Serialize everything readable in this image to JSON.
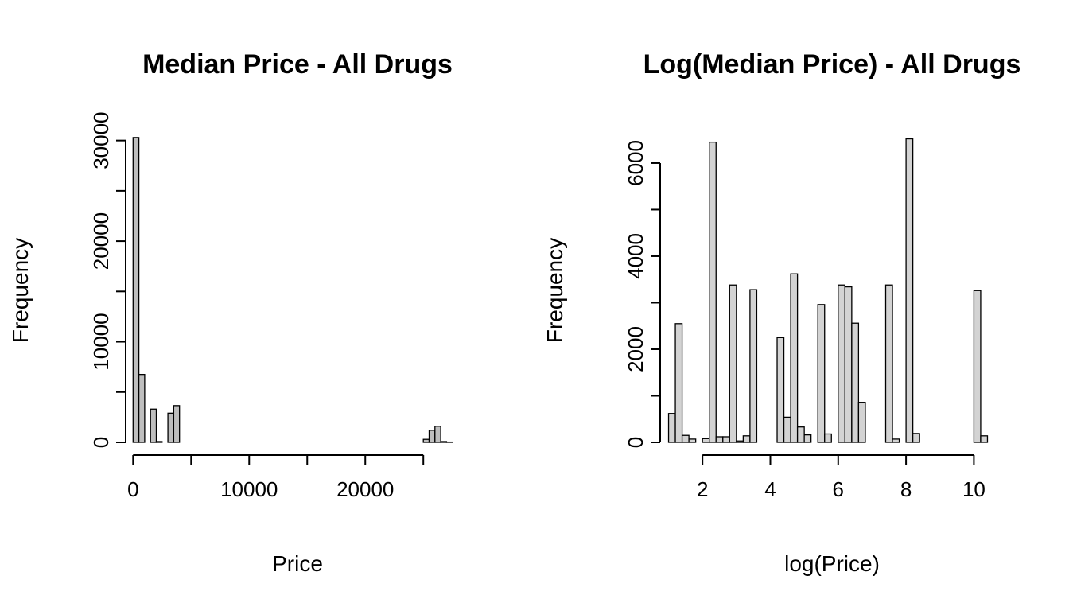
{
  "chart_data": [
    {
      "type": "bar",
      "title": "Median Price - All Drugs",
      "xlabel": "Price",
      "ylabel": "Frequency",
      "xlim": [
        -500,
        28000
      ],
      "ylim": [
        0,
        31000
      ],
      "xticks": [
        0,
        10000,
        20000
      ],
      "xtick_labels": [
        "0",
        "10000",
        "20000"
      ],
      "yticks": [
        0,
        5000,
        10000,
        15000,
        20000,
        25000,
        30000
      ],
      "ytick_labels": [
        "0",
        "",
        "10000",
        "",
        "20000",
        "",
        "30000"
      ],
      "bar_color": "#bebebe",
      "bins": [
        {
          "x0": 0,
          "x1": 500,
          "value": 30300
        },
        {
          "x0": 500,
          "x1": 1000,
          "value": 6750
        },
        {
          "x0": 1000,
          "x1": 1500,
          "value": 0
        },
        {
          "x0": 1500,
          "x1": 2000,
          "value": 3300
        },
        {
          "x0": 2000,
          "x1": 2500,
          "value": 80
        },
        {
          "x0": 2500,
          "x1": 3000,
          "value": 0
        },
        {
          "x0": 3000,
          "x1": 3500,
          "value": 2900
        },
        {
          "x0": 3500,
          "x1": 4000,
          "value": 3650
        },
        {
          "x0": 25000,
          "x1": 25500,
          "value": 300
        },
        {
          "x0": 25500,
          "x1": 26000,
          "value": 1200
        },
        {
          "x0": 26000,
          "x1": 26500,
          "value": 1600
        },
        {
          "x0": 26500,
          "x1": 27000,
          "value": 80
        },
        {
          "x0": 27000,
          "x1": 27500,
          "value": 30
        }
      ]
    },
    {
      "type": "bar",
      "title": "Log(Median Price) - All Drugs",
      "xlabel": "log(Price)",
      "ylabel": "Frequency",
      "xlim": [
        0.8,
        10.6
      ],
      "ylim": [
        0,
        6700
      ],
      "xticks": [
        2,
        4,
        6,
        8,
        10
      ],
      "xtick_labels": [
        "2",
        "4",
        "6",
        "8",
        "10"
      ],
      "yticks": [
        0,
        1000,
        2000,
        3000,
        4000,
        5000,
        6000
      ],
      "ytick_labels": [
        "0",
        "",
        "2000",
        "",
        "4000",
        "",
        "6000"
      ],
      "bar_color": "#d3d3d3",
      "bins": [
        {
          "x0": 1.0,
          "x1": 1.2,
          "value": 620
        },
        {
          "x0": 1.2,
          "x1": 1.4,
          "value": 2550
        },
        {
          "x0": 1.4,
          "x1": 1.6,
          "value": 150
        },
        {
          "x0": 1.6,
          "x1": 1.8,
          "value": 70
        },
        {
          "x0": 1.8,
          "x1": 2.0,
          "value": 0
        },
        {
          "x0": 2.0,
          "x1": 2.2,
          "value": 80
        },
        {
          "x0": 2.2,
          "x1": 2.4,
          "value": 6450
        },
        {
          "x0": 2.4,
          "x1": 2.6,
          "value": 120
        },
        {
          "x0": 2.6,
          "x1": 2.8,
          "value": 120
        },
        {
          "x0": 2.8,
          "x1": 3.0,
          "value": 3380
        },
        {
          "x0": 3.0,
          "x1": 3.2,
          "value": 30
        },
        {
          "x0": 3.2,
          "x1": 3.4,
          "value": 140
        },
        {
          "x0": 3.4,
          "x1": 3.6,
          "value": 3280
        },
        {
          "x0": 4.2,
          "x1": 4.4,
          "value": 2250
        },
        {
          "x0": 4.4,
          "x1": 4.6,
          "value": 540
        },
        {
          "x0": 4.6,
          "x1": 4.8,
          "value": 3620
        },
        {
          "x0": 4.8,
          "x1": 5.0,
          "value": 330
        },
        {
          "x0": 5.0,
          "x1": 5.2,
          "value": 160
        },
        {
          "x0": 5.4,
          "x1": 5.6,
          "value": 2960
        },
        {
          "x0": 5.6,
          "x1": 5.8,
          "value": 180
        },
        {
          "x0": 6.0,
          "x1": 6.2,
          "value": 3380
        },
        {
          "x0": 6.2,
          "x1": 6.4,
          "value": 3340
        },
        {
          "x0": 6.4,
          "x1": 6.6,
          "value": 2560
        },
        {
          "x0": 6.6,
          "x1": 6.8,
          "value": 860
        },
        {
          "x0": 7.4,
          "x1": 7.6,
          "value": 3380
        },
        {
          "x0": 7.6,
          "x1": 7.8,
          "value": 70
        },
        {
          "x0": 8.0,
          "x1": 8.2,
          "value": 6520
        },
        {
          "x0": 8.2,
          "x1": 8.4,
          "value": 190
        },
        {
          "x0": 8.4,
          "x1": 8.6,
          "value": 0
        },
        {
          "x0": 8.6,
          "x1": 8.8,
          "value": 0
        },
        {
          "x0": 8.8,
          "x1": 9.0,
          "value": 0
        },
        {
          "x0": 9.0,
          "x1": 9.2,
          "value": 0
        },
        {
          "x0": 9.2,
          "x1": 9.4,
          "value": 0
        },
        {
          "x0": 9.4,
          "x1": 9.6,
          "value": 0
        },
        {
          "x0": 9.6,
          "x1": 9.8,
          "value": 0
        },
        {
          "x0": 9.8,
          "x1": 10.0,
          "value": 0
        },
        {
          "x0": 10.0,
          "x1": 10.2,
          "value": 3260
        },
        {
          "x0": 10.2,
          "x1": 10.4,
          "value": 140
        }
      ]
    }
  ]
}
